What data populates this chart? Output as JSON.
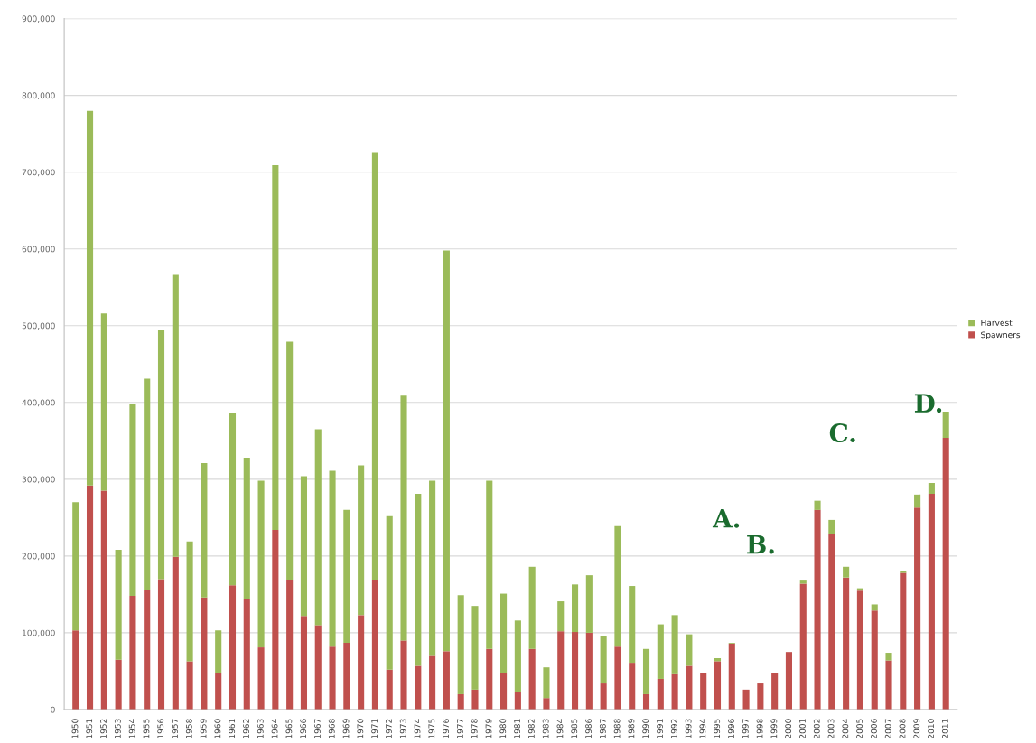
{
  "chart_data": {
    "type": "bar",
    "stacked": true,
    "categories": [
      "1950",
      "1951",
      "1952",
      "1953",
      "1954",
      "1955",
      "1956",
      "1957",
      "1958",
      "1959",
      "1960",
      "1961",
      "1962",
      "1963",
      "1964",
      "1965",
      "1966",
      "1967",
      "1968",
      "1969",
      "1970",
      "1971",
      "1972",
      "1973",
      "1974",
      "1975",
      "1976",
      "1977",
      "1978",
      "1979",
      "1980",
      "1981",
      "1982",
      "1983",
      "1984",
      "1985",
      "1986",
      "1987",
      "1988",
      "1989",
      "1990",
      "1991",
      "1992",
      "1993",
      "1994",
      "1995",
      "1996",
      "1997",
      "1998",
      "1999",
      "2000",
      "2001",
      "2002",
      "2003",
      "2004",
      "2005",
      "2006",
      "2007",
      "2008",
      "2009",
      "2010",
      "2011"
    ],
    "series": [
      {
        "name": "Spawners",
        "color": "#c0504d",
        "values": [
          103000,
          292000,
          285000,
          65000,
          148000,
          156000,
          170000,
          199000,
          63000,
          146000,
          48000,
          162000,
          144000,
          81000,
          234000,
          168000,
          122000,
          110000,
          82000,
          87000,
          123000,
          169000,
          52000,
          90000,
          57000,
          70000,
          76000,
          20000,
          26000,
          79000,
          47000,
          23000,
          79000,
          15000,
          102000,
          101000,
          100000,
          34000,
          82000,
          61000,
          20000,
          40000,
          46000,
          57000,
          47000,
          63000,
          86000,
          26000,
          34000,
          48000,
          75000,
          164000,
          260000,
          229000,
          172000,
          155000,
          129000,
          64000,
          178000,
          263000,
          281000,
          354000
        ]
      },
      {
        "name": "Harvest",
        "color": "#9bbb59",
        "values": [
          167000,
          488000,
          231000,
          143000,
          250000,
          275000,
          325000,
          367000,
          156000,
          175000,
          55000,
          224000,
          184000,
          217000,
          475000,
          311000,
          182000,
          255000,
          229000,
          173000,
          195000,
          557000,
          200000,
          319000,
          224000,
          228000,
          522000,
          129000,
          109000,
          219000,
          104000,
          93000,
          107000,
          40000,
          39000,
          62000,
          75000,
          62000,
          157000,
          100000,
          59000,
          71000,
          77000,
          41000,
          0,
          4000,
          1000,
          0,
          0,
          0,
          0,
          4000,
          12000,
          18000,
          14000,
          3000,
          8000,
          10000,
          3000,
          17000,
          14000,
          34000
        ]
      }
    ],
    "ylim": [
      0,
      900000
    ],
    "yticks": [
      0,
      {
        "value": 100000,
        "label": "100,000"
      },
      {
        "value": 200000,
        "label": "200,000"
      },
      {
        "value": 300000,
        "label": "300,000"
      },
      {
        "value": 400000,
        "label": "400,000"
      },
      {
        "value": 500000,
        "label": "500,000"
      },
      {
        "value": 600000,
        "label": "600,000"
      },
      {
        "value": 700000,
        "label": "700,000"
      },
      {
        "value": 800000,
        "label": "800,000"
      },
      {
        "value": 900000,
        "label": "900,000"
      }
    ],
    "grid": "y",
    "legend": "right",
    "annotations": [
      "A.",
      "B.",
      "C.",
      "D."
    ]
  }
}
